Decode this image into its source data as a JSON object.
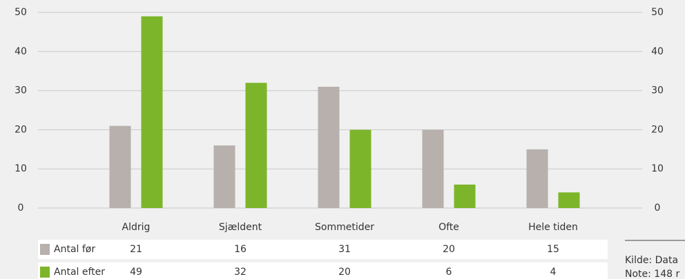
{
  "chart_data": {
    "type": "bar",
    "categories": [
      "Aldrig",
      "Sjældent",
      "Sommetider",
      "Ofte",
      "Hele tiden"
    ],
    "series": [
      {
        "name": "Antal før",
        "color": "#b7b0ad",
        "values": [
          21,
          16,
          31,
          20,
          15
        ]
      },
      {
        "name": "Antal efter",
        "color": "#7db52a",
        "values": [
          49,
          32,
          20,
          6,
          4
        ]
      }
    ],
    "ylim": [
      0,
      50
    ],
    "yticks": [
      0,
      10,
      20,
      30,
      40,
      50
    ],
    "grid": true,
    "source": "Kilde: Data",
    "note": "Note: 148 r"
  }
}
